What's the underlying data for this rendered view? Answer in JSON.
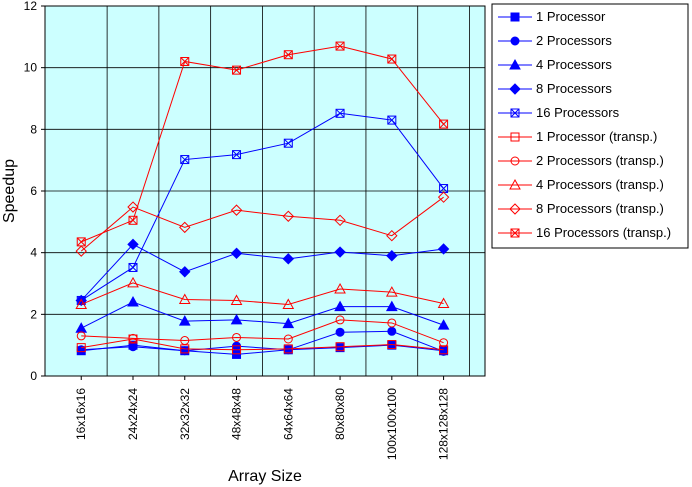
{
  "chart_data": {
    "type": "line",
    "xlabel": "Array Size",
    "ylabel": "Speedup",
    "ylim": [
      0,
      12
    ],
    "yticks": [
      0,
      2,
      4,
      6,
      8,
      10,
      12
    ],
    "grid": true,
    "plot_background": "#ccffff",
    "legend_position": "right",
    "categories": [
      "16x16x16",
      "24x24x24",
      "32x32x32",
      "48x48x48",
      "64x64x64",
      "80x80x80",
      "100x100x100",
      "128x128x128"
    ],
    "series": [
      {
        "name": "1 Processor",
        "color": "#0000ff",
        "marker": "square-filled",
        "values": [
          0.82,
          1.0,
          0.82,
          0.7,
          0.85,
          0.92,
          1.0,
          0.82
        ]
      },
      {
        "name": "2 Processors",
        "color": "#0000ff",
        "marker": "circle-filled",
        "values": [
          0.85,
          0.95,
          0.82,
          0.97,
          0.85,
          1.42,
          1.45,
          0.8
        ]
      },
      {
        "name": "4 Processors",
        "color": "#0000ff",
        "marker": "triangle-filled",
        "values": [
          1.55,
          2.4,
          1.78,
          1.82,
          1.7,
          2.25,
          2.25,
          1.65
        ]
      },
      {
        "name": "8 Processors",
        "color": "#0000ff",
        "marker": "diamond-filled",
        "values": [
          2.45,
          4.27,
          3.38,
          3.98,
          3.8,
          4.02,
          3.9,
          4.12
        ]
      },
      {
        "name": "16 Processors",
        "color": "#0000ff",
        "marker": "square-x",
        "values": [
          2.45,
          3.52,
          7.02,
          7.18,
          7.55,
          8.52,
          8.3,
          6.08
        ]
      },
      {
        "name": "1 Processor (transp.)",
        "color": "#ff0000",
        "marker": "square-open",
        "values": [
          0.92,
          1.2,
          0.88,
          0.85,
          0.88,
          0.95,
          1.02,
          0.85
        ]
      },
      {
        "name": "2 Processors (transp.)",
        "color": "#ff0000",
        "marker": "circle-open",
        "values": [
          1.3,
          1.22,
          1.15,
          1.25,
          1.2,
          1.82,
          1.72,
          1.08
        ]
      },
      {
        "name": "4 Processors (transp.)",
        "color": "#ff0000",
        "marker": "triangle-open",
        "values": [
          2.32,
          3.02,
          2.48,
          2.45,
          2.32,
          2.82,
          2.72,
          2.35
        ]
      },
      {
        "name": "8 Processors (transp.)",
        "color": "#ff0000",
        "marker": "diamond-open",
        "values": [
          4.05,
          5.48,
          4.82,
          5.38,
          5.18,
          5.05,
          4.55,
          5.8
        ]
      },
      {
        "name": "16 Processors (transp.)",
        "color": "#ff0000",
        "marker": "square-x",
        "values": [
          4.35,
          5.05,
          10.2,
          9.92,
          10.42,
          10.7,
          10.28,
          8.17
        ]
      }
    ]
  }
}
